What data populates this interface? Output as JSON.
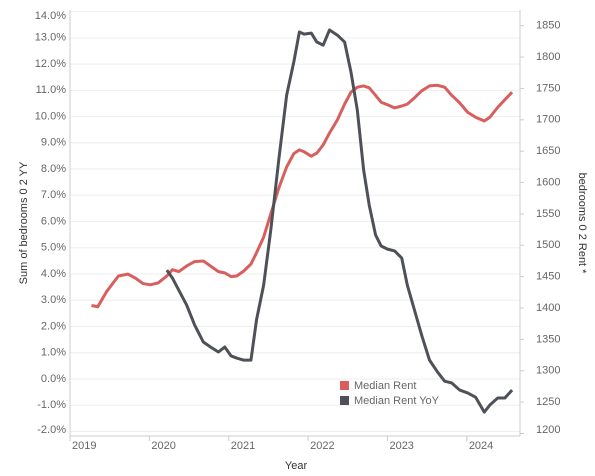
{
  "chart_data": {
    "type": "line",
    "x_label": "Year",
    "y_label": "Sum of bedrooms 0 2 YY",
    "y2_label": "bedrooms 0 2 Rent *",
    "x": [
      2019.27,
      2019.35,
      2019.46,
      2019.61,
      2019.73,
      2019.82,
      2019.92,
      2020.01,
      2020.11,
      2020.22,
      2020.29,
      2020.37,
      2020.47,
      2020.57,
      2020.68,
      2020.77,
      2020.87,
      2020.95,
      2021.03,
      2021.1,
      2021.19,
      2021.28,
      2021.35,
      2021.44,
      2021.53,
      2021.63,
      2021.73,
      2021.82,
      2021.89,
      2021.95,
      2022.04,
      2022.11,
      2022.19,
      2022.27,
      2022.37,
      2022.46,
      2022.54,
      2022.62,
      2022.7,
      2022.77,
      2022.85,
      2022.92,
      2023.0,
      2023.09,
      2023.18,
      2023.25,
      2023.34,
      2023.43,
      2023.53,
      2023.63,
      2023.72,
      2023.81,
      2023.91,
      2024.01,
      2024.11,
      2024.22,
      2024.29,
      2024.39,
      2024.48,
      2024.57
    ],
    "series": [
      {
        "name": "Median Rent",
        "color": "#d95f5f",
        "axis": "y2",
        "values": [
          1404,
          1402,
          1426,
          1451,
          1454,
          1448,
          1439,
          1437,
          1440,
          1451,
          1461,
          1458,
          1467,
          1474,
          1475,
          1467,
          1458,
          1456,
          1450,
          1451,
          1459,
          1470,
          1488,
          1513,
          1550,
          1591,
          1625,
          1646,
          1652,
          1649,
          1642,
          1647,
          1660,
          1679,
          1700,
          1725,
          1744,
          1752,
          1754,
          1751,
          1739,
          1728,
          1724,
          1719,
          1722,
          1725,
          1735,
          1746,
          1754,
          1755,
          1752,
          1739,
          1727,
          1712,
          1704,
          1698,
          1704,
          1720,
          1732,
          1744
        ]
      },
      {
        "name": "Median Rent YoY",
        "color": "#4e5157",
        "values": [
          null,
          null,
          null,
          null,
          null,
          null,
          null,
          null,
          null,
          4.15,
          3.85,
          3.39,
          2.82,
          2.06,
          1.41,
          1.22,
          1.03,
          1.22,
          0.88,
          0.8,
          0.72,
          0.72,
          2.25,
          3.58,
          5.68,
          8.34,
          10.82,
          12.08,
          13.22,
          13.14,
          13.18,
          12.84,
          12.72,
          13.3,
          13.1,
          12.84,
          11.7,
          10.25,
          7.96,
          6.63,
          5.49,
          5.07,
          4.95,
          4.88,
          4.61,
          3.58,
          2.63,
          1.68,
          0.72,
          0.27,
          -0.08,
          -0.15,
          -0.42,
          -0.53,
          -0.69,
          -1.26,
          -0.99,
          -0.72,
          -0.72,
          -0.42
        ]
      }
    ],
    "xlim": [
      2019,
      2024.67
    ],
    "xticks": [
      2019,
      2020,
      2021,
      2022,
      2023,
      2024
    ],
    "ylim": [
      -2.17,
      14.06
    ],
    "yticks": [
      {
        "value": 14,
        "label": "14.0%"
      },
      {
        "value": 13,
        "label": "13.0%"
      },
      {
        "value": 12,
        "label": "12.0%"
      },
      {
        "value": 11,
        "label": "11.0%"
      },
      {
        "value": 10,
        "label": "10.0%"
      },
      {
        "value": 9,
        "label": "9.0%"
      },
      {
        "value": 8,
        "label": "8.0%"
      },
      {
        "value": 7,
        "label": "7.0%"
      },
      {
        "value": 6,
        "label": "6.0%"
      },
      {
        "value": 5,
        "label": "5.0%"
      },
      {
        "value": 4,
        "label": "4.0%"
      },
      {
        "value": 3,
        "label": "3.0%"
      },
      {
        "value": 2,
        "label": "2.0%"
      },
      {
        "value": 1,
        "label": "1.0%"
      },
      {
        "value": 0,
        "label": "0.0%"
      },
      {
        "value": -1,
        "label": "-1.0%"
      },
      {
        "value": -2,
        "label": "-2.0%"
      }
    ],
    "y2lim": [
      1196,
      1875
    ],
    "y2ticks": [
      1200,
      1250,
      1300,
      1350,
      1400,
      1450,
      1500,
      1550,
      1600,
      1650,
      1700,
      1750,
      1800,
      1850
    ],
    "grid": true,
    "legend": "lower-right"
  }
}
